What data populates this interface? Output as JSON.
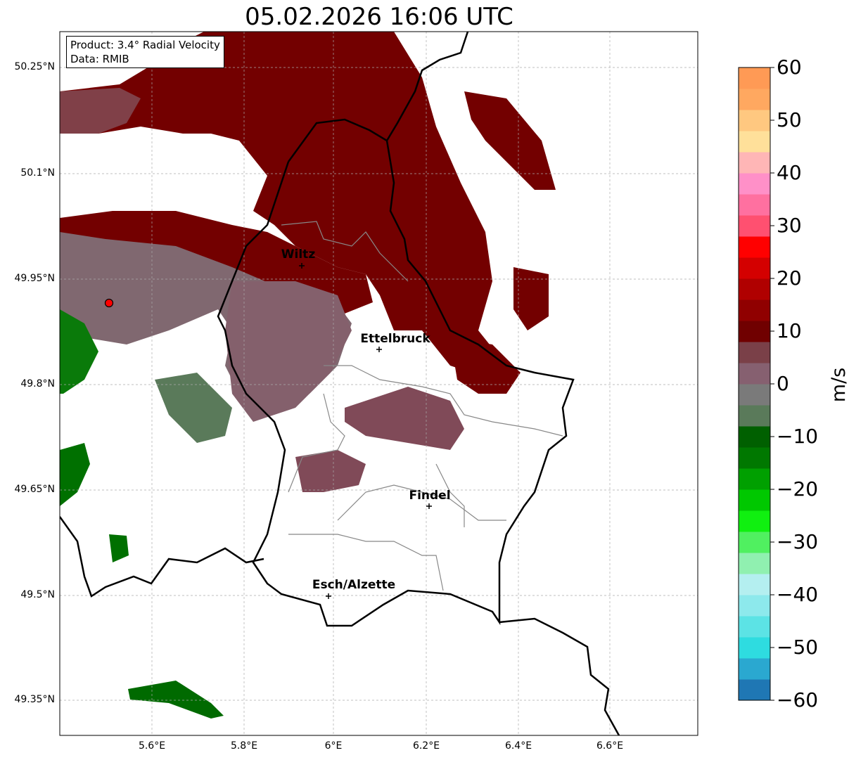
{
  "title": "05.02.2026 16:06 UTC",
  "info_box": {
    "product": "Product: 3.4° Radial Velocity",
    "data": "Data: RMIB"
  },
  "axes": {
    "lat_ticks": [
      "50.25°N",
      "50.1°N",
      "49.95°N",
      "49.8°N",
      "49.65°N",
      "49.5°N",
      "49.35°N"
    ],
    "lon_ticks": [
      "5.6°E",
      "5.8°E",
      "6°E",
      "6.2°E",
      "6.4°E",
      "6.6°E"
    ]
  },
  "cities": [
    {
      "name": "Wiltz",
      "lon": 5.93,
      "lat": 49.97
    },
    {
      "name": "Ettelbruck",
      "lon": 6.1,
      "lat": 49.85
    },
    {
      "name": "Findel",
      "lon": 6.21,
      "lat": 49.63
    },
    {
      "name": "Esch/Alzette",
      "lon": 5.99,
      "lat": 49.5
    }
  ],
  "radar_site": {
    "color": "#ff0000"
  },
  "colorbar": {
    "label": "m/s",
    "min": -60,
    "max": 60,
    "ticks": [
      "60",
      "50",
      "40",
      "30",
      "20",
      "10",
      "0",
      "−10",
      "−20",
      "−30",
      "−40",
      "−50",
      "−60"
    ],
    "colors": [
      "#1f77b4",
      "#2aa8d0",
      "#2edce0",
      "#5ce3e5",
      "#8de9ec",
      "#b4eff0",
      "#90f0b0",
      "#50f060",
      "#10f010",
      "#00c800",
      "#00a000",
      "#007800",
      "#006000",
      "#5a7a5a",
      "#7a7a7a",
      "#866070",
      "#7a4048",
      "#700000",
      "#900000",
      "#b00000",
      "#d40000",
      "#ff0000",
      "#ff5070",
      "#ff70a0",
      "#ff90c8",
      "#ffb6b6",
      "#ffe09a",
      "#ffc880",
      "#ffa860",
      "#ff9a55"
    ]
  }
}
